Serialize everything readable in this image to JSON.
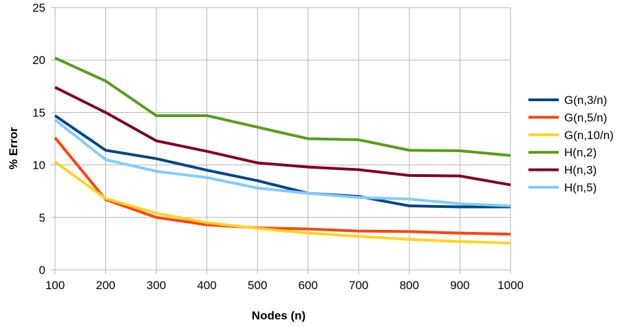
{
  "chart_data": {
    "type": "line",
    "title": "",
    "xlabel": "Nodes (n)",
    "ylabel": "% Error",
    "x": [
      100,
      200,
      300,
      400,
      500,
      600,
      700,
      800,
      900,
      1000
    ],
    "xlim": [
      100,
      1000
    ],
    "ylim": [
      0,
      25
    ],
    "x_ticks": [
      100,
      200,
      300,
      400,
      500,
      600,
      700,
      800,
      900,
      1000
    ],
    "y_ticks": [
      0,
      5,
      10,
      15,
      20,
      25
    ],
    "grid": true,
    "legend_position": "right",
    "series": [
      {
        "name": "G(n,3/n)",
        "color": "#004586",
        "values": [
          14.7,
          11.4,
          10.6,
          9.5,
          8.5,
          7.3,
          7.0,
          6.1,
          6.0,
          6.0
        ]
      },
      {
        "name": "G(n,5/n)",
        "color": "#ff420e",
        "values": [
          12.6,
          6.7,
          5.0,
          4.3,
          4.0,
          3.9,
          3.7,
          3.65,
          3.5,
          3.4
        ]
      },
      {
        "name": "G(n,10/n)",
        "color": "#ffd320",
        "values": [
          10.3,
          6.8,
          5.4,
          4.5,
          3.95,
          3.5,
          3.2,
          2.9,
          2.7,
          2.55
        ]
      },
      {
        "name": "H(n,2)",
        "color": "#579d1c",
        "values": [
          20.2,
          18.0,
          14.7,
          14.7,
          13.6,
          12.5,
          12.4,
          11.4,
          11.35,
          10.9
        ]
      },
      {
        "name": "H(n,3)",
        "color": "#7e0021",
        "values": [
          17.4,
          15.0,
          12.3,
          11.3,
          10.2,
          9.8,
          9.55,
          9.0,
          8.95,
          8.1
        ]
      },
      {
        "name": "H(n,5)",
        "color": "#83caff",
        "values": [
          14.3,
          10.5,
          9.4,
          8.8,
          7.8,
          7.3,
          6.9,
          6.75,
          6.3,
          6.1
        ]
      }
    ]
  }
}
